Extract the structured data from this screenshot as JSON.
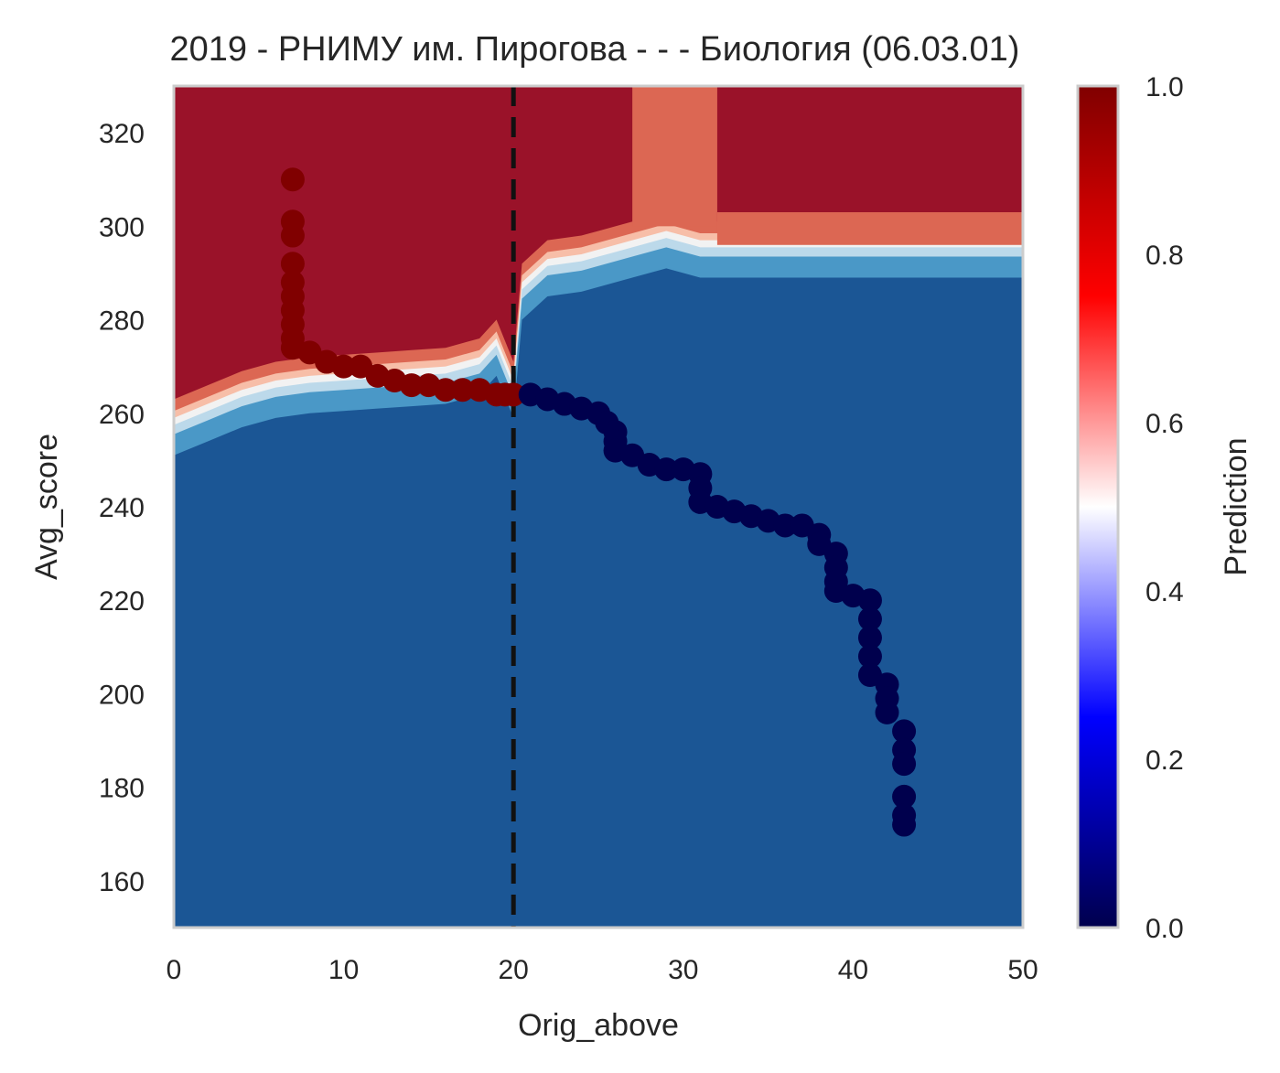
{
  "chart_data": {
    "type": "scatter",
    "title": "2019 - РНИМУ им. Пирогова - - - Биология (06.03.01)",
    "xlabel": "Orig_above",
    "ylabel": "Avg_score",
    "xlim": [
      0,
      50
    ],
    "ylim": [
      150,
      330
    ],
    "x_ticks": [
      "0",
      "10",
      "20",
      "30",
      "40",
      "50"
    ],
    "y_ticks": [
      "160",
      "180",
      "200",
      "220",
      "240",
      "260",
      "280",
      "300",
      "320"
    ],
    "grid": false,
    "threshold_line": {
      "x": 20,
      "style": "dashed",
      "color": "#111111"
    },
    "colorbar": {
      "label": "Prediction",
      "range": [
        0,
        1
      ],
      "ticks": [
        "0.0",
        "0.2",
        "0.4",
        "0.6",
        "0.8",
        "1.0"
      ],
      "colormap": "seismic"
    },
    "background_regions": {
      "colors": {
        "high": "#9a1229",
        "mid_high": "#dc6753",
        "light_red": "#f7bea8",
        "white": "#f2f2f2",
        "light_blue": "#bcd9ea",
        "mid_blue": "#4a98c7",
        "low": "#1b5695"
      },
      "boundary_x": [
        0,
        2,
        4,
        6,
        8,
        10,
        12,
        14,
        16,
        18,
        19,
        20,
        20.5,
        22,
        24,
        25,
        26,
        27,
        29,
        31,
        32,
        40,
        50
      ],
      "boundary_y": [
        257,
        260,
        263,
        265,
        266,
        266.5,
        267,
        267.5,
        268,
        270,
        274,
        265,
        286,
        291,
        292,
        293,
        294,
        295,
        297,
        295,
        295,
        295,
        295
      ],
      "column_27_32_top": "mid_high"
    },
    "series": [
      {
        "name": "1",
        "color": "#800000",
        "points": [
          [
            7,
            310
          ],
          [
            7,
            301
          ],
          [
            7,
            298
          ],
          [
            7,
            292
          ],
          [
            7,
            288
          ],
          [
            7,
            285
          ],
          [
            7,
            282
          ],
          [
            7,
            279
          ],
          [
            7,
            276
          ],
          [
            7,
            274
          ],
          [
            8,
            273
          ],
          [
            9,
            271
          ],
          [
            10,
            270
          ],
          [
            11,
            270
          ],
          [
            12,
            268
          ],
          [
            13,
            267
          ],
          [
            14,
            266
          ],
          [
            15,
            266
          ],
          [
            16,
            265
          ],
          [
            17,
            265
          ],
          [
            18,
            265
          ],
          [
            19,
            264
          ],
          [
            19.5,
            264
          ],
          [
            20,
            264
          ]
        ]
      },
      {
        "name": "0",
        "color": "#00004d",
        "points": [
          [
            21,
            264
          ],
          [
            22,
            263
          ],
          [
            23,
            262
          ],
          [
            24,
            261
          ],
          [
            25,
            260
          ],
          [
            25.5,
            258
          ],
          [
            26,
            256
          ],
          [
            26,
            254
          ],
          [
            26,
            252
          ],
          [
            27,
            251
          ],
          [
            28,
            249
          ],
          [
            29,
            248
          ],
          [
            30,
            248
          ],
          [
            31,
            247
          ],
          [
            31,
            244
          ],
          [
            31,
            241
          ],
          [
            32,
            240
          ],
          [
            33,
            239
          ],
          [
            34,
            238
          ],
          [
            35,
            237
          ],
          [
            36,
            236
          ],
          [
            37,
            236
          ],
          [
            38,
            234
          ],
          [
            38,
            232
          ],
          [
            39,
            230
          ],
          [
            39,
            227
          ],
          [
            39,
            224
          ],
          [
            39,
            222
          ],
          [
            40,
            221
          ],
          [
            41,
            220
          ],
          [
            41,
            216
          ],
          [
            41,
            212
          ],
          [
            41,
            208
          ],
          [
            41,
            204
          ],
          [
            42,
            202
          ],
          [
            42,
            199
          ],
          [
            42,
            196
          ],
          [
            43,
            192
          ],
          [
            43,
            188
          ],
          [
            43,
            185
          ],
          [
            43,
            178
          ],
          [
            43,
            174
          ],
          [
            43,
            172
          ]
        ]
      }
    ]
  }
}
